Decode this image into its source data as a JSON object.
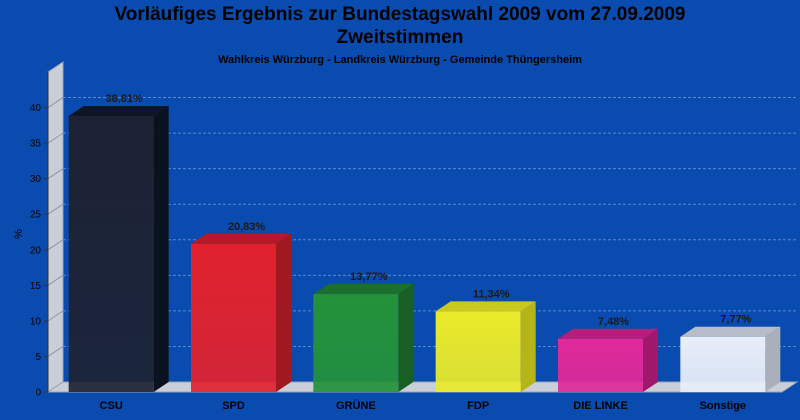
{
  "chart_data": {
    "type": "bar",
    "title": "Vorläufiges Ergebnis zur Bundestagswahl 2009 vom 27.09.2009",
    "title_line2": "Zweitstimmen",
    "subtitle": "Wahlkreis Würzburg - Landkreis Würzburg - Gemeinde Thüngersheim",
    "ylabel": "%",
    "xlabel": "",
    "ylim": [
      0,
      45
    ],
    "yticks": [
      0,
      5,
      10,
      15,
      20,
      25,
      30,
      35,
      40
    ],
    "grid": true,
    "categories": [
      "CSU",
      "SPD",
      "GRÜNE",
      "FDP",
      "DIE LINKE",
      "Sonstige"
    ],
    "values": [
      38.81,
      20.83,
      13.77,
      11.34,
      7.48,
      7.77
    ],
    "data_labels": [
      "38,81%",
      "20,83%",
      "13,77%",
      "11,34%",
      "7,48%",
      "7,77%"
    ],
    "colors": [
      "#1c2233",
      "#e1222e",
      "#23923a",
      "#eaea2a",
      "#e0299a",
      "#e8eef8"
    ],
    "top_colors": [
      "#0e1626",
      "#b51b26",
      "#1c6f2c",
      "#c8c81e",
      "#b51e7c",
      "#b6bdc9"
    ],
    "side_colors": [
      "#0a1220",
      "#a01820",
      "#175f25",
      "#b5b51a",
      "#a0186c",
      "#a9b0bc"
    ]
  }
}
